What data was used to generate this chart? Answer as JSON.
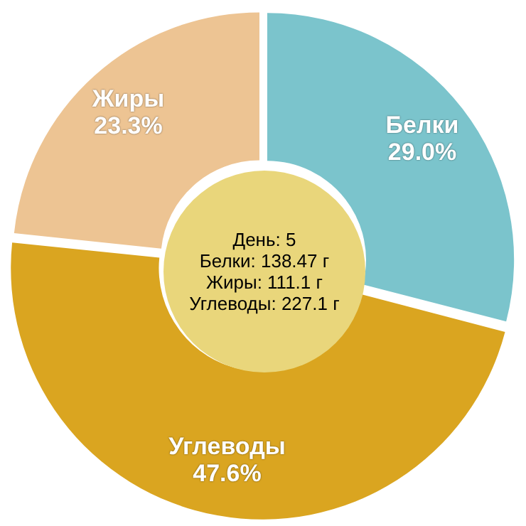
{
  "chart_data": {
    "type": "donut",
    "categories": [
      "Белки",
      "Углеводы",
      "Жиры"
    ],
    "values": [
      29.0,
      47.6,
      23.3
    ],
    "value_labels": [
      "29.0%",
      "47.6%",
      "23.3%"
    ],
    "colors": [
      "#7bc4cc",
      "#daa520",
      "#edc493"
    ],
    "legend": false,
    "annotations": [
      "День: 5",
      "Белки: 138.47 г",
      "Жиры: 111.1 г",
      "Углеводы: 227.1 г"
    ]
  }
}
